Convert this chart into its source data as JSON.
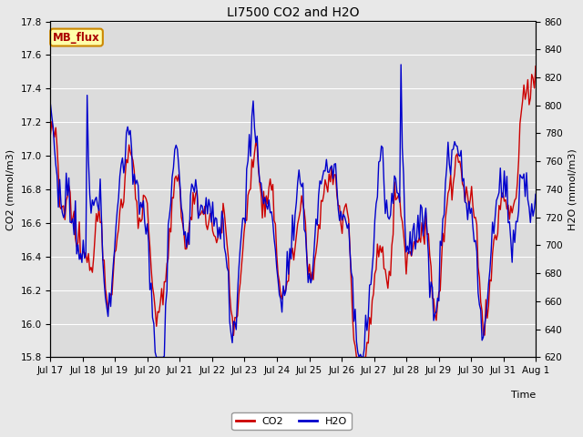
{
  "title": "LI7500 CO2 and H2O",
  "xlabel": "Time",
  "ylabel_left": "CO2 (mmol/m3)",
  "ylabel_right": "H2O (mmol/m3)",
  "co2_ylim": [
    15.8,
    17.8
  ],
  "h2o_ylim": [
    620,
    860
  ],
  "xtick_labels": [
    "Jul 17",
    "Jul 18",
    "Jul 19",
    "Jul 20",
    "Jul 21",
    "Jul 22",
    "Jul 23",
    "Jul 24",
    "Jul 25",
    "Jul 26",
    "Jul 27",
    "Jul 28",
    "Jul 29",
    "Jul 30",
    "Jul 31",
    "Aug 1"
  ],
  "co2_color": "#cc0000",
  "h2o_color": "#0000cc",
  "fig_bg_color": "#e8e8e8",
  "plot_bg_color": "#dcdcdc",
  "grid_color": "#ffffff",
  "annotation_text": "MB_flux",
  "title_fontsize": 10,
  "axis_label_fontsize": 8,
  "tick_fontsize": 7.5,
  "legend_fontsize": 8,
  "line_width": 1.0
}
